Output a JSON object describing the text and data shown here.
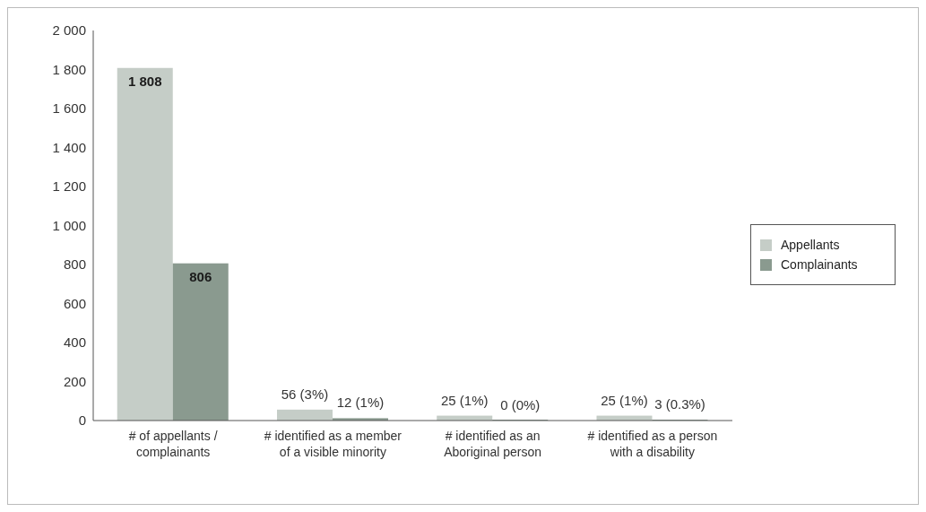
{
  "chart_data": {
    "type": "bar",
    "categories": [
      "# of appellants / complainants",
      "# identified as a member of a visible minority",
      "# identified as an Aboriginal person",
      "# identified as a person with a disability"
    ],
    "series": [
      {
        "name": "Appellants",
        "color": "#c5cdc7",
        "values": [
          1808,
          56,
          25,
          25
        ],
        "value_labels": [
          "1 808",
          "56 (3%)",
          "25 (1%)",
          "25 (1%)"
        ]
      },
      {
        "name": "Complainants",
        "color": "#8a9a8f",
        "values": [
          806,
          12,
          0,
          3
        ],
        "value_labels": [
          "806",
          "12 (1%)",
          "0 (0%)",
          "3 (0.3%)"
        ]
      }
    ],
    "ylim": [
      0,
      2000
    ],
    "yticks": [
      0,
      200,
      400,
      600,
      800,
      {
        "value": 1000,
        "label": "1 000"
      },
      {
        "value": 1200,
        "label": "1 200"
      },
      {
        "value": 1400,
        "label": "1 400"
      },
      {
        "value": 1600,
        "label": "1 600"
      },
      {
        "value": 1800,
        "label": "1 800"
      },
      {
        "value": 2000,
        "label": "2 000"
      }
    ],
    "grid": false,
    "legend": "right"
  }
}
